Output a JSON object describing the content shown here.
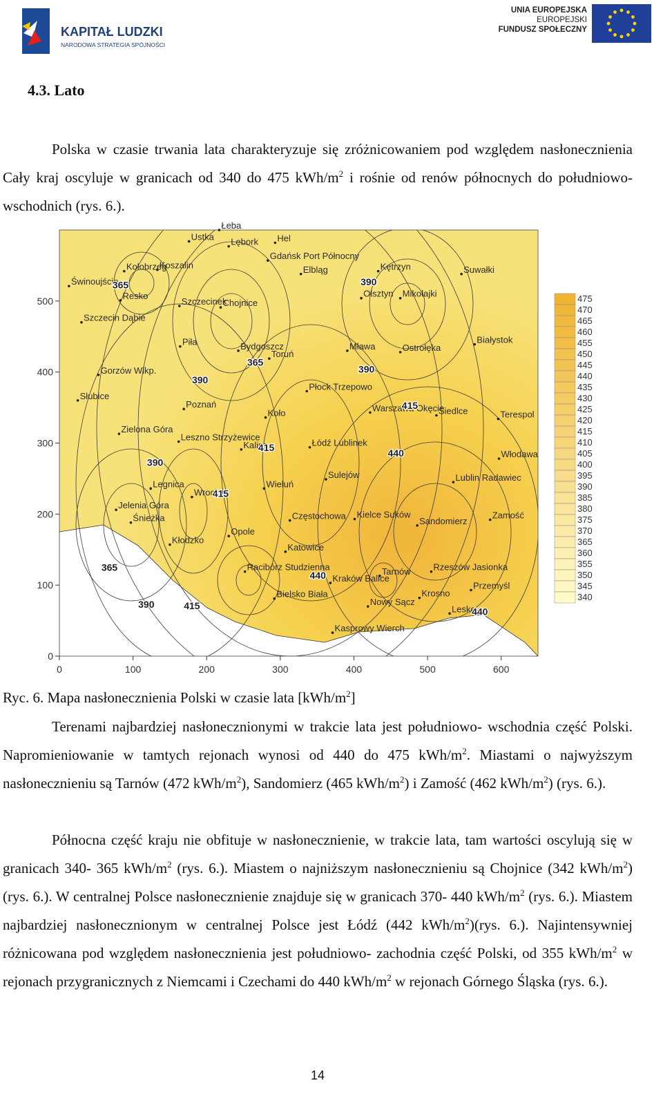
{
  "header": {
    "logo_left": {
      "title": "KAPITAŁ LUDZKI",
      "subtitle": "NARODOWA STRATEGIA SPÓJNOŚCI"
    },
    "logo_right": {
      "lines": [
        "UNIA EUROPEJSKA",
        "EUROPEJSKI",
        "FUNDUSZ SPOŁECZNY"
      ]
    }
  },
  "section_title": "4.3. Lato",
  "paragraphs_before": [
    {
      "parts": [
        "Polska w czasie trwania lata charakteryzuje się zróżnicowaniem pod względem nasłonecznienia Cały kraj oscyluje w granicach od 340 do 475 kWh/m",
        "2",
        " i rośnie od renów północnych do południowo- wschodnich (rys. 6.)."
      ]
    }
  ],
  "figure": {
    "type": "map",
    "xlim": [
      0,
      650
    ],
    "ylim": [
      0,
      600
    ],
    "xticks": [
      0,
      100,
      200,
      300,
      400,
      500,
      600
    ],
    "yticks": [
      0,
      100,
      200,
      300,
      400,
      500
    ],
    "legend": {
      "values": [
        475,
        470,
        465,
        460,
        455,
        450,
        445,
        440,
        435,
        430,
        425,
        420,
        415,
        410,
        405,
        400,
        395,
        390,
        385,
        380,
        375,
        370,
        365,
        360,
        355,
        350,
        345,
        340
      ]
    },
    "cities": [
      {
        "label": "Łeba",
        "x": 217,
        "y": 600
      },
      {
        "label": "Ustka",
        "x": 176,
        "y": 584
      },
      {
        "label": "Lębork",
        "x": 230,
        "y": 577
      },
      {
        "label": "Hel",
        "x": 293,
        "y": 582
      },
      {
        "label": "Gdańsk Port Północny",
        "x": 283,
        "y": 557
      },
      {
        "label": "Kołobrzeg",
        "x": 88,
        "y": 542
      },
      {
        "label": "Koszalin",
        "x": 133,
        "y": 544
      },
      {
        "label": "Elbląg",
        "x": 328,
        "y": 538
      },
      {
        "label": "Kętrzyn",
        "x": 433,
        "y": 542
      },
      {
        "label": "Suwałki",
        "x": 546,
        "y": 538
      },
      {
        "label": "Świnoujście",
        "x": 13,
        "y": 521
      },
      {
        "label": "Resko",
        "x": 83,
        "y": 501
      },
      {
        "label": "Olsztyn",
        "x": 410,
        "y": 504
      },
      {
        "label": "Mikołajki",
        "x": 463,
        "y": 504
      },
      {
        "label": "Szczecinek",
        "x": 163,
        "y": 493
      },
      {
        "label": "Chojnice",
        "x": 219,
        "y": 491
      },
      {
        "label": "Szczecin Dąbie",
        "x": 30,
        "y": 470
      },
      {
        "label": "Piła",
        "x": 164,
        "y": 436
      },
      {
        "label": "Bydgoszcz",
        "x": 243,
        "y": 430
      },
      {
        "label": "Toruń",
        "x": 285,
        "y": 419
      },
      {
        "label": "Mława",
        "x": 391,
        "y": 430
      },
      {
        "label": "Ostrołęka",
        "x": 463,
        "y": 428
      },
      {
        "label": "Białystok",
        "x": 564,
        "y": 439
      },
      {
        "label": "Gorzów Wlkp.",
        "x": 53,
        "y": 396
      },
      {
        "label": "Płock Trzepowo",
        "x": 336,
        "y": 373
      },
      {
        "label": "Słubice",
        "x": 25,
        "y": 360
      },
      {
        "label": "Poznań",
        "x": 169,
        "y": 348
      },
      {
        "label": "Warszawa Okęcie",
        "x": 422,
        "y": 343
      },
      {
        "label": "Siedlce",
        "x": 512,
        "y": 339
      },
      {
        "label": "Terespol",
        "x": 596,
        "y": 334
      },
      {
        "label": "Koło",
        "x": 280,
        "y": 336
      },
      {
        "label": "Zielona Góra",
        "x": 81,
        "y": 313
      },
      {
        "label": "Leszno Strzyżewice",
        "x": 162,
        "y": 302
      },
      {
        "label": "Kalisz",
        "x": 247,
        "y": 291
      },
      {
        "label": "Łódź Lublinek",
        "x": 340,
        "y": 294
      },
      {
        "label": "Włodawa",
        "x": 597,
        "y": 278
      },
      {
        "label": "Sulejów",
        "x": 362,
        "y": 249
      },
      {
        "label": "Lublin Radawiec",
        "x": 535,
        "y": 245
      },
      {
        "label": "Legnica",
        "x": 124,
        "y": 236
      },
      {
        "label": "Wrocław",
        "x": 180,
        "y": 224
      },
      {
        "label": "Wieluń",
        "x": 278,
        "y": 236
      },
      {
        "label": "Jelenia Góra",
        "x": 77,
        "y": 206
      },
      {
        "label": "Śnieżka",
        "x": 97,
        "y": 188
      },
      {
        "label": "Częstochowa",
        "x": 313,
        "y": 191
      },
      {
        "label": "Kielce Suków",
        "x": 401,
        "y": 193
      },
      {
        "label": "Zamość",
        "x": 585,
        "y": 192
      },
      {
        "label": "Sandomierz",
        "x": 486,
        "y": 184
      },
      {
        "label": "Opole",
        "x": 230,
        "y": 169
      },
      {
        "label": "Kłodzko",
        "x": 150,
        "y": 157
      },
      {
        "label": "Katowice",
        "x": 307,
        "y": 147
      },
      {
        "label": "Racibórz Studzienna",
        "x": 252,
        "y": 119
      },
      {
        "label": "Rzeszów Jasionka",
        "x": 505,
        "y": 119
      },
      {
        "label": "Tarnów",
        "x": 435,
        "y": 113
      },
      {
        "label": "Kraków Balice",
        "x": 368,
        "y": 103
      },
      {
        "label": "Przemyśl",
        "x": 559,
        "y": 93
      },
      {
        "label": "Bielsko Biała",
        "x": 292,
        "y": 81
      },
      {
        "label": "Krosno",
        "x": 489,
        "y": 82
      },
      {
        "label": "Nowy Sącz",
        "x": 419,
        "y": 70
      },
      {
        "label": "Lesko",
        "x": 530,
        "y": 60
      },
      {
        "label": "Kasprowy Wierch",
        "x": 371,
        "y": 33
      }
    ],
    "contour_labels": [
      {
        "value": 365,
        "x": 83,
        "y": 518
      },
      {
        "value": 390,
        "x": 420,
        "y": 522
      },
      {
        "value": 365,
        "x": 266,
        "y": 409
      },
      {
        "value": 390,
        "x": 191,
        "y": 384
      },
      {
        "value": 390,
        "x": 417,
        "y": 399
      },
      {
        "value": 415,
        "x": 476,
        "y": 348
      },
      {
        "value": 415,
        "x": 281,
        "y": 289
      },
      {
        "value": 440,
        "x": 457,
        "y": 281
      },
      {
        "value": 390,
        "x": 130,
        "y": 268
      },
      {
        "value": 415,
        "x": 219,
        "y": 224
      },
      {
        "value": 365,
        "x": 68,
        "y": 120
      },
      {
        "value": 440,
        "x": 351,
        "y": 109
      },
      {
        "value": 390,
        "x": 118,
        "y": 68
      },
      {
        "value": 415,
        "x": 180,
        "y": 66
      },
      {
        "value": 440,
        "x": 571,
        "y": 58
      }
    ],
    "caption": {
      "parts": [
        "Ryc. 6. Mapa nasłonecznienia Polski w czasie lata [kWh/m",
        "2",
        "]"
      ]
    }
  },
  "paragraphs_after": [
    {
      "parts": [
        "Terenami najbardziej nasłonecznionymi w trakcie lata jest południowo- wschodnia część Polski. Napromieniowanie w tamtych rejonach wynosi od 440 do 475 kWh/m",
        "2",
        ". Miastami o najwyższym nasłonecznieniu są Tarnów (472 kWh/m",
        "2",
        "), Sandomierz (465 kWh/m",
        "2",
        ") i Zamość (462 kWh/m",
        "2",
        ") (rys. 6.)."
      ]
    },
    {
      "parts": [
        "Północna część kraju nie obfituje w nasłonecznienie, w trakcie lata, tam wartości oscylują się w granicach 340- 365 kWh/m",
        "2",
        " (rys. 6.). Miastem o najniższym nasłonecznieniu są Chojnice (342 kWh/m",
        "2",
        ") (rys. 6.). W centralnej Polsce nasłonecznienie znajduje się w granicach 370- 440 kWh/m",
        "2",
        " (rys. 6.). Miastem najbardziej nasłonecznionym w centralnej Polsce jest Łódź (442 kWh/m",
        "2",
        ")(rys. 6.). Najintensywniej różnicowana pod względem nasłonecznienia jest południowo- zachodnia część Polski, od 355 kWh/m",
        "2",
        " w rejonach przygranicznych z Niemcami i Czechami do 440 kWh/m",
        "2",
        " w rejonach Górnego Śląska (rys. 6.)."
      ]
    }
  ],
  "page_number": "14"
}
